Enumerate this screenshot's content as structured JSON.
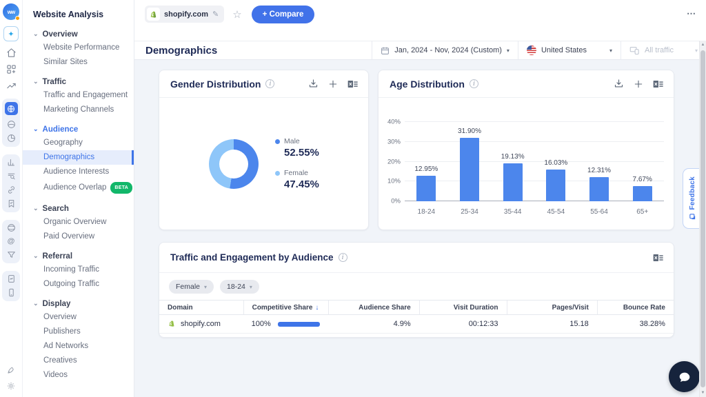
{
  "icons": {
    "chevron_down": "⌄",
    "caret_down": "▾",
    "star": "☆",
    "pencil": "✎",
    "more_menu": "⋯",
    "info": "i",
    "plus": "+"
  },
  "topbar": {
    "site_domain": "shopify.com",
    "compare_button": "+ Compare"
  },
  "header": {
    "title": "Demographics",
    "date_range": "Jan, 2024 - Nov, 2024 (Custom)",
    "country": "United States",
    "traffic_filter": "All traffic"
  },
  "sidebar": {
    "title": "Website Analysis",
    "sections": [
      {
        "label": "Overview",
        "active": false,
        "items": [
          {
            "label": "Website Performance"
          },
          {
            "label": "Similar Sites"
          }
        ]
      },
      {
        "label": "Traffic",
        "active": false,
        "items": [
          {
            "label": "Traffic and Engagement"
          },
          {
            "label": "Marketing Channels"
          }
        ]
      },
      {
        "label": "Audience",
        "active": true,
        "items": [
          {
            "label": "Geography"
          },
          {
            "label": "Demographics",
            "selected": true
          },
          {
            "label": "Audience Interests"
          },
          {
            "label": "Audience Overlap",
            "badge": "BETA"
          }
        ]
      },
      {
        "label": "Search",
        "active": false,
        "items": [
          {
            "label": "Organic Overview"
          },
          {
            "label": "Paid Overview"
          }
        ]
      },
      {
        "label": "Referral",
        "active": false,
        "items": [
          {
            "label": "Incoming Traffic"
          },
          {
            "label": "Outgoing Traffic"
          }
        ]
      },
      {
        "label": "Display",
        "active": false,
        "items": [
          {
            "label": "Overview"
          },
          {
            "label": "Publishers"
          },
          {
            "label": "Ad Networks"
          },
          {
            "label": "Creatives"
          },
          {
            "label": "Videos"
          }
        ]
      }
    ]
  },
  "cards": {
    "gender_title": "Gender Distribution",
    "age_title": "Age Distribution",
    "table_title": "Traffic and Engagement by Audience"
  },
  "chart_data": [
    {
      "type": "pie",
      "title": "Gender Distribution",
      "donut": true,
      "labels": [
        "Male",
        "Female"
      ],
      "values": [
        52.55,
        47.45
      ],
      "value_labels": [
        "52.55%",
        "47.45%"
      ],
      "colors": [
        "#4c86ec",
        "#8ec6f9"
      ],
      "legend_position": "right"
    },
    {
      "type": "bar",
      "title": "Age Distribution",
      "categories": [
        "18-24",
        "25-34",
        "35-44",
        "45-54",
        "55-64",
        "65+"
      ],
      "values": [
        12.95,
        31.9,
        19.13,
        16.03,
        12.31,
        7.67
      ],
      "value_labels": [
        "12.95%",
        "31.90%",
        "19.13%",
        "16.03%",
        "12.31%",
        "7.67%"
      ],
      "xlabel": "",
      "ylabel": "",
      "ylim": [
        0,
        40
      ],
      "yticks": [
        "0%",
        "10%",
        "20%",
        "30%",
        "40%"
      ],
      "bar_color": "#4c86ec",
      "grid": true
    },
    {
      "type": "table",
      "title": "Traffic and Engagement by Audience",
      "filters": [
        "Female",
        "18-24"
      ],
      "sort_column": "Competitive Share",
      "columns": [
        "Domain",
        "Competitive Share",
        "Audience Share",
        "Visit Duration",
        "Pages/Visit",
        "Bounce Rate"
      ],
      "rows": [
        {
          "domain": "shopify.com",
          "competitive_share": "100%",
          "competitive_share_bar": 100,
          "audience_share": "4.9%",
          "visit_duration": "00:12:33",
          "pages_per_visit": "15.18",
          "bounce_rate": "38.28%"
        }
      ]
    }
  ],
  "feedback_tab": "Feedback",
  "colors": {
    "brand_blue": "#3e74e8",
    "bar_blue": "#4c86ec",
    "female_blue": "#8ec6f9",
    "navy": "#1e2a56",
    "beta_green": "#12b76a",
    "content_bg": "#f1f4f9"
  }
}
